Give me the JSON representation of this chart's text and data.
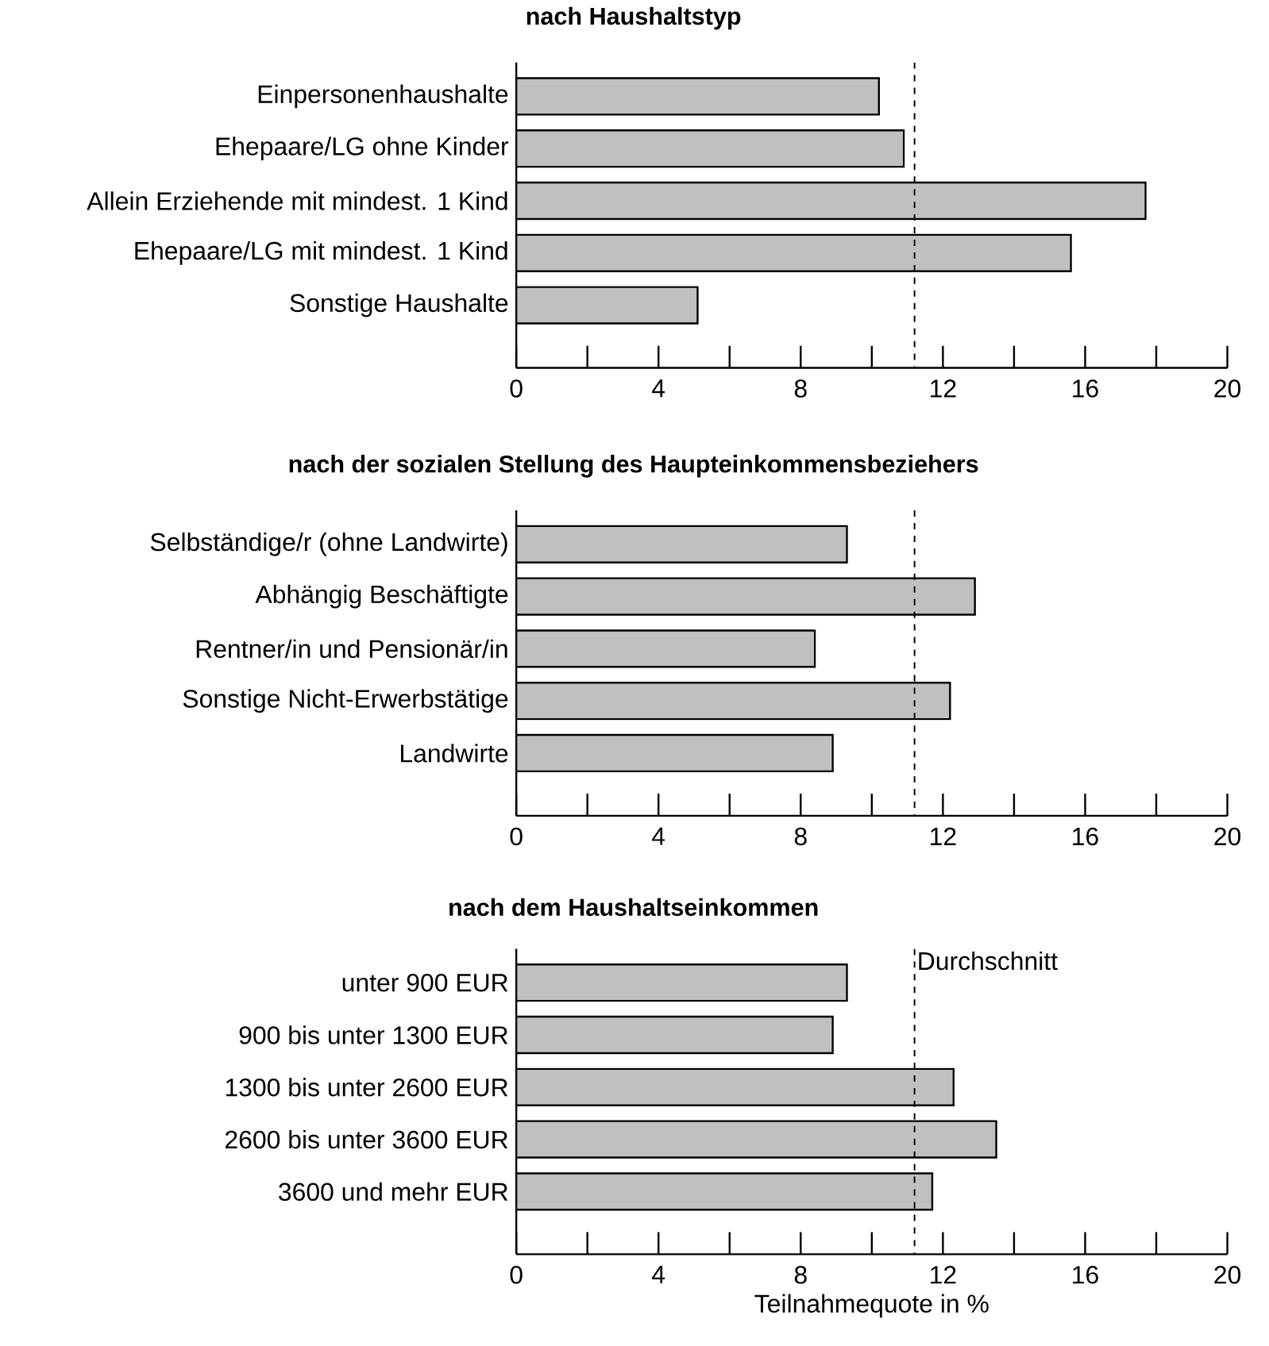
{
  "chart_data": [
    {
      "type": "bar",
      "orientation": "horizontal",
      "title": "nach Haushaltstyp",
      "categories": [
        "Einpersonenhaushalte",
        "Ehepaare/LG ohne Kinder",
        "Allein Erziehende mit mindest. 1 Kind",
        "Ehepaare/LG mit mindest. 1 Kind",
        "Sonstige Haushalte"
      ],
      "values": [
        10.2,
        10.9,
        17.7,
        15.6,
        5.1
      ],
      "color": "#bfc0c2",
      "xlim": [
        0,
        20
      ],
      "xticks": [
        0,
        {
          "value": 2,
          "label": null
        },
        4,
        {
          "value": 6,
          "label": null
        },
        8,
        {
          "value": 10,
          "label": null
        },
        12,
        {
          "value": 14,
          "label": null
        },
        16,
        {
          "value": 18,
          "label": null
        },
        20
      ],
      "ref_lines": [
        {
          "axis": "x",
          "value": 11.2,
          "line_style": "dashed"
        }
      ]
    },
    {
      "type": "bar",
      "orientation": "horizontal",
      "title": "nach der sozialen Stellung des Haupteinkommensbeziehers",
      "categories": [
        "Selbständige/r (ohne Landwirte)",
        "Abhängig Beschäftigte",
        "Rentner/in und Pensionär/in",
        "Sonstige Nicht-Erwerbstätige",
        "Landwirte"
      ],
      "values": [
        9.3,
        12.9,
        8.4,
        12.2,
        8.9
      ],
      "color": "#bfc0c2",
      "xlim": [
        0,
        20
      ],
      "xticks": [
        0,
        {
          "value": 2,
          "label": null
        },
        4,
        {
          "value": 6,
          "label": null
        },
        8,
        {
          "value": 10,
          "label": null
        },
        12,
        {
          "value": 14,
          "label": null
        },
        16,
        {
          "value": 18,
          "label": null
        },
        20
      ],
      "ref_lines": [
        {
          "axis": "x",
          "value": 11.2,
          "line_style": "dashed"
        }
      ]
    },
    {
      "type": "bar",
      "orientation": "horizontal",
      "title": "nach dem Haushaltseinkommen",
      "xlabel": "Teilnahmequote in %",
      "categories": [
        "unter 900 EUR",
        "900 bis unter 1300 EUR",
        "1300 bis unter 2600 EUR",
        "2600 bis unter 3600 EUR",
        "3600 und mehr EUR"
      ],
      "values": [
        9.3,
        8.9,
        12.3,
        13.5,
        11.7
      ],
      "color": "#bfc0c2",
      "xlim": [
        0,
        20
      ],
      "xticks": [
        0,
        {
          "value": 2,
          "label": null
        },
        4,
        {
          "value": 6,
          "label": null
        },
        8,
        {
          "value": 10,
          "label": null
        },
        12,
        {
          "value": 14,
          "label": null
        },
        16,
        {
          "value": 18,
          "label": null
        },
        20
      ],
      "ref_lines": [
        {
          "axis": "x",
          "value": 11.2,
          "label": "Durchschnitt",
          "line_style": "dashed"
        }
      ]
    }
  ]
}
